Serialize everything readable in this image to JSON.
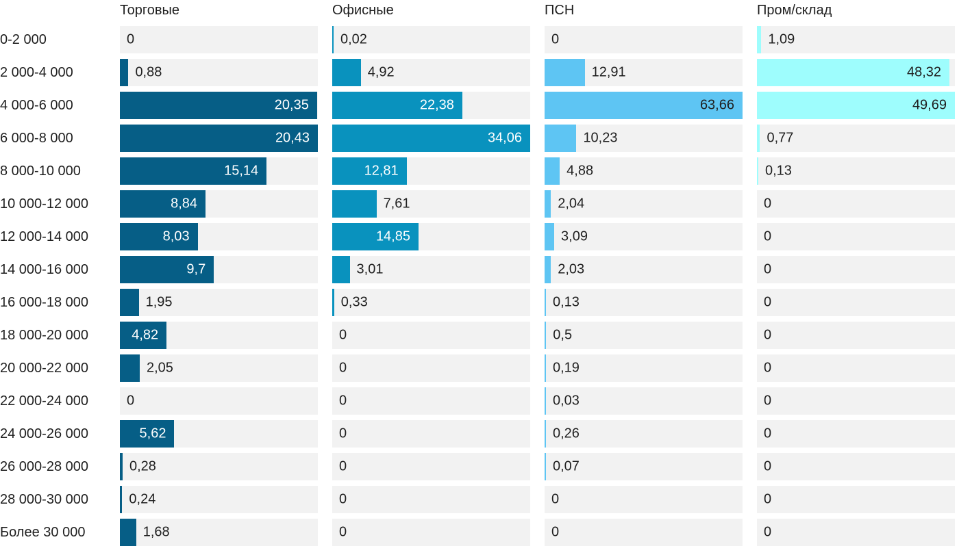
{
  "chart_data": {
    "type": "bar",
    "orientation": "horizontal",
    "scale": "each column scaled independently so its max value fills the track",
    "grid": "off",
    "track_color": "#f2f2f2",
    "text_color": "#1f1f1f",
    "categories": [
      "0-2 000",
      "2 000-4 000",
      "4 000-6 000",
      "6 000-8 000",
      "8 000-10 000",
      "10 000-12 000",
      "12 000-14 000",
      "14 000-16 000",
      "16 000-18 000",
      "18 000-20 000",
      "20 000-22 000",
      "22 000-24 000",
      "24 000-26 000",
      "26 000-28 000",
      "28 000-30 000",
      "Более 30 000"
    ],
    "series": [
      {
        "name": "Торговые",
        "color": "#065e86",
        "inside_label_color": "#ffffff",
        "values": [
          0,
          0.88,
          20.35,
          20.43,
          15.14,
          8.84,
          8.03,
          9.7,
          1.95,
          4.82,
          2.05,
          0,
          5.62,
          0.28,
          0.24,
          1.68
        ],
        "labels": [
          "0",
          "0,88",
          "20,35",
          "20,43",
          "15,14",
          "8,84",
          "8,03",
          "9,7",
          "1,95",
          "4,82",
          "2,05",
          "0",
          "5,62",
          "0,28",
          "0,24",
          "1,68"
        ]
      },
      {
        "name": "Офисные",
        "color": "#0992be",
        "inside_label_color": "#ffffff",
        "values": [
          0.02,
          4.92,
          22.38,
          34.06,
          12.81,
          7.61,
          14.85,
          3.01,
          0.33,
          0,
          0,
          0,
          0,
          0,
          0,
          0
        ],
        "labels": [
          "0,02",
          "4,92",
          "22,38",
          "34,06",
          "12,81",
          "7,61",
          "14,85",
          "3,01",
          "0,33",
          "0",
          "0",
          "0",
          "0",
          "0",
          "0",
          "0"
        ]
      },
      {
        "name": "ПСН",
        "color": "#5ec5f3",
        "inside_label_color": "#1f1f1f",
        "values": [
          0,
          12.91,
          63.66,
          10.23,
          4.88,
          2.04,
          3.09,
          2.03,
          0.13,
          0.5,
          0.19,
          0.03,
          0.26,
          0.07,
          0,
          0
        ],
        "labels": [
          "0",
          "12,91",
          "63,66",
          "10,23",
          "4,88",
          "2,04",
          "3,09",
          "2,03",
          "0,13",
          "0,5",
          "0,19",
          "0,03",
          "0,26",
          "0,07",
          "0",
          "0"
        ]
      },
      {
        "name": "Пром/склад",
        "color": "#9efdfd",
        "inside_label_color": "#1f1f1f",
        "values": [
          1.09,
          48.32,
          49.69,
          0.77,
          0.13,
          0,
          0,
          0,
          0,
          0,
          0,
          0,
          0,
          0,
          0,
          0
        ],
        "labels": [
          "1,09",
          "48,32",
          "49,69",
          "0,77",
          "0,13",
          "0",
          "0",
          "0",
          "0",
          "0",
          "0",
          "0",
          "0",
          "0",
          "0",
          "0"
        ]
      }
    ]
  }
}
